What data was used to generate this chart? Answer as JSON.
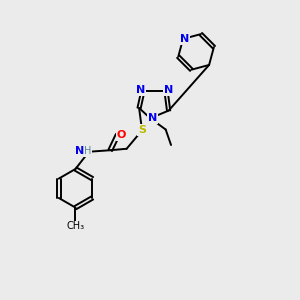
{
  "background_color": "#ebebeb",
  "bond_color": "#000000",
  "atom_colors": {
    "N": "#0000ee",
    "S": "#bbbb00",
    "O": "#ff0000",
    "H": "#558899",
    "C": "#000000"
  },
  "figsize": [
    3.0,
    3.0
  ],
  "dpi": 100,
  "lw": 1.4,
  "fontsize": 7.5
}
